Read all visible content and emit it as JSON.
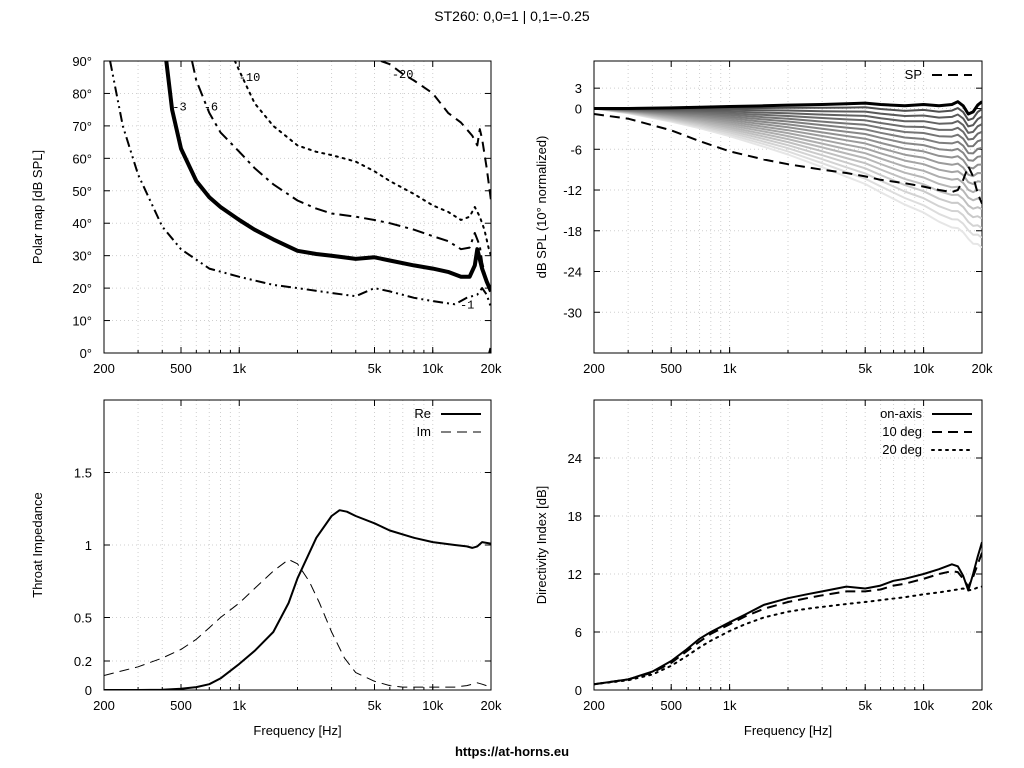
{
  "page_title": "ST260: 0,0=1 | 0,1=-0.25",
  "footer": "https://at-horns.eu",
  "chart_data": [
    {
      "type": "line",
      "id": "polar",
      "title": "",
      "xlabel": "",
      "ylabel": "Polar map [dB SPL]",
      "xscale": "log",
      "xlim": [
        200,
        20000
      ],
      "ylim": [
        0,
        90
      ],
      "xticks": [
        200,
        500,
        1000,
        5000,
        10000,
        20000
      ],
      "xticklabels": [
        "200",
        "500",
        "1k",
        "5k",
        "10k",
        "20k"
      ],
      "yticks": [
        0,
        10,
        20,
        30,
        40,
        50,
        60,
        70,
        80,
        90
      ],
      "yticklabels": [
        "0°",
        "10°",
        "20°",
        "30°",
        "40°",
        "50°",
        "60°",
        "70°",
        "80°",
        "90°"
      ],
      "grid": true,
      "series": [
        {
          "name": "-1",
          "style": "dash-dot-dot",
          "width": 2,
          "x": [
            215,
            250,
            300,
            400,
            500,
            700,
            1000,
            1500,
            2000,
            3000,
            4000,
            5000,
            6000,
            8000,
            10000,
            13000,
            15000,
            17000,
            18000,
            19000,
            20000
          ],
          "y": [
            90,
            70,
            55,
            39,
            32,
            26,
            23.5,
            21,
            20,
            18.5,
            17.5,
            20,
            19,
            17,
            16,
            15,
            17,
            18,
            20,
            18,
            14
          ],
          "label": {
            "text": "-1",
            "x": 13500,
            "y": 15
          }
        },
        {
          "name": "-3",
          "style": "solid",
          "width": 4,
          "x": [
            420,
            450,
            500,
            600,
            700,
            800,
            1000,
            1200,
            1500,
            2000,
            2500,
            3000,
            4000,
            5000,
            6000,
            8000,
            10000,
            12000,
            14000,
            15500,
            16500,
            17000,
            18000,
            19000,
            20000
          ],
          "y": [
            90,
            75,
            63,
            53,
            48,
            45,
            41,
            38,
            35,
            31.5,
            30.5,
            30,
            29,
            29.5,
            28.5,
            27,
            26,
            25,
            23.5,
            23.5,
            27,
            32,
            26,
            22,
            19
          ],
          "label": {
            "text": "-3",
            "x": 440,
            "y": 76
          }
        },
        {
          "name": "-6",
          "style": "dash-dot",
          "width": 2,
          "x": [
            570,
            600,
            700,
            800,
            1000,
            1200,
            1500,
            2000,
            2500,
            3000,
            4000,
            5000,
            6000,
            8000,
            10000,
            12000,
            14000,
            15500,
            16500,
            17500,
            18000,
            19000,
            20000
          ],
          "y": [
            90,
            84,
            74,
            68,
            62,
            57,
            52,
            47,
            44.5,
            43,
            42,
            41,
            40,
            38,
            36,
            34.5,
            32,
            32.5,
            37,
            33,
            28,
            22,
            19
          ],
          "label": {
            "text": "-6",
            "x": 640,
            "y": 76
          }
        },
        {
          "name": "-10",
          "style": "dotted",
          "width": 2,
          "x": [
            950,
            1000,
            1200,
            1500,
            2000,
            2500,
            3000,
            4000,
            5000,
            6000,
            8000,
            10000,
            12000,
            14000,
            15500,
            16500,
            17500,
            18500,
            19500,
            20000
          ],
          "y": [
            90,
            87,
            77,
            70,
            64,
            62,
            61,
            59,
            56,
            53,
            49,
            45.5,
            43.5,
            41,
            42,
            45,
            42,
            38,
            32,
            30
          ],
          "label": {
            "text": "-10",
            "x": 970,
            "y": 85
          }
        },
        {
          "name": "-20",
          "style": "dashed",
          "width": 2,
          "x": [
            5400,
            6000,
            7000,
            8000,
            10000,
            12000,
            14000,
            16000,
            17000,
            17500,
            18000,
            19000,
            20000
          ],
          "y": [
            90,
            89,
            86,
            84,
            80,
            74,
            71,
            67,
            64,
            69,
            66,
            57,
            47
          ],
          "label": {
            "text": "-20",
            "x": 6000,
            "y": 86
          }
        },
        {
          "name": "0",
          "style": "solid",
          "width": 3,
          "x": [
            19700,
            20000
          ],
          "y": [
            0,
            1.5
          ],
          "label": null
        }
      ]
    },
    {
      "type": "line",
      "id": "spl",
      "title": "",
      "xlabel": "",
      "ylabel": "dB SPL (10° normalized)",
      "xscale": "log",
      "xlim": [
        200,
        20000
      ],
      "ylim": [
        -36,
        7
      ],
      "xticks": [
        200,
        500,
        1000,
        5000,
        10000,
        20000
      ],
      "xticklabels": [
        "200",
        "500",
        "1k",
        "5k",
        "10k",
        "20k"
      ],
      "yticks": [
        3,
        0,
        -6,
        -12,
        -18,
        -24,
        -30
      ],
      "yticklabels": [
        "3",
        "0",
        "-6",
        "-12",
        "-18",
        "-24",
        "-30"
      ],
      "grid": true,
      "legend": [
        {
          "name": "SP",
          "style": "dashed"
        }
      ],
      "legend_position": "top-right",
      "x": [
        200,
        300,
        500,
        700,
        1000,
        1500,
        2000,
        3000,
        4000,
        5000,
        6000,
        8000,
        10000,
        12000,
        14000,
        15000,
        16000,
        17000,
        18000,
        19000,
        20000
      ],
      "fan_base": [
        0,
        0.1,
        0.2,
        0.3,
        0.5,
        0.8,
        1.0,
        1.5,
        1.9,
        2.1,
        2.3,
        2.6,
        3.0,
        3.3,
        3.7,
        3.9,
        3.0,
        1.5,
        3.2,
        5.0,
        6.8
      ],
      "series": [
        {
          "name": "on-axis",
          "style": "solid",
          "width": 3,
          "y": [
            0,
            0,
            0.1,
            0.2,
            0.3,
            0.4,
            0.5,
            0.6,
            0.7,
            0.8,
            0.6,
            0.4,
            0.6,
            0.4,
            0.6,
            1.0,
            0.4,
            -0.8,
            -0.5,
            0.5,
            1.0
          ]
        },
        {
          "name": "SP",
          "style": "dashed",
          "width": 2,
          "y": [
            -0.8,
            -1.5,
            -3.2,
            -4.8,
            -6.3,
            -7.5,
            -8.2,
            -9.0,
            -9.5,
            -10.0,
            -10.5,
            -11.0,
            -11.5,
            -12.0,
            -12.3,
            -12.0,
            -10.5,
            -8.5,
            -10.0,
            -12.5,
            -14.0
          ]
        }
      ]
    },
    {
      "type": "line",
      "id": "impedance",
      "title": "",
      "xlabel": "Frequency [Hz]",
      "ylabel": "Throat Impedance",
      "xscale": "log",
      "xlim": [
        200,
        20000
      ],
      "ylim": [
        0,
        2
      ],
      "xticks": [
        200,
        500,
        1000,
        5000,
        10000,
        20000
      ],
      "xticklabels": [
        "200",
        "500",
        "1k",
        "5k",
        "10k",
        "20k"
      ],
      "yticks": [
        0,
        0.2,
        0.5,
        1,
        1.5
      ],
      "yticklabels": [
        "0",
        "0.2",
        "0.5",
        "1",
        "1.5"
      ],
      "grid": true,
      "legend_position": "top-right",
      "series": [
        {
          "name": "Re",
          "style": "solid",
          "width": 2,
          "x": [
            200,
            300,
            400,
            500,
            600,
            700,
            800,
            1000,
            1200,
            1500,
            1800,
            2000,
            2500,
            3000,
            3300,
            3600,
            4000,
            5000,
            6000,
            8000,
            10000,
            13000,
            15000,
            16000,
            17000,
            18000,
            20000
          ],
          "y": [
            0,
            0,
            0.002,
            0.008,
            0.02,
            0.04,
            0.08,
            0.18,
            0.27,
            0.4,
            0.6,
            0.77,
            1.05,
            1.2,
            1.24,
            1.23,
            1.2,
            1.15,
            1.1,
            1.05,
            1.02,
            1.0,
            0.99,
            0.98,
            0.99,
            1.02,
            1.01
          ]
        },
        {
          "name": "Im",
          "style": "dashed",
          "width": 1,
          "x": [
            200,
            300,
            400,
            500,
            600,
            700,
            800,
            1000,
            1200,
            1500,
            1800,
            2000,
            2300,
            2600,
            3000,
            3500,
            4000,
            5000,
            6000,
            7000,
            8000,
            10000,
            13000,
            15000,
            17000,
            18000,
            20000
          ],
          "y": [
            0.1,
            0.16,
            0.22,
            0.28,
            0.35,
            0.43,
            0.5,
            0.6,
            0.7,
            0.82,
            0.9,
            0.87,
            0.75,
            0.6,
            0.4,
            0.22,
            0.12,
            0.06,
            0.03,
            0.02,
            0.02,
            0.02,
            0.02,
            0.03,
            0.05,
            0.04,
            0.02
          ]
        }
      ]
    },
    {
      "type": "line",
      "id": "di",
      "title": "",
      "xlabel": "Frequency [Hz]",
      "ylabel": "Directivity Index [dB]",
      "xscale": "log",
      "xlim": [
        200,
        20000
      ],
      "ylim": [
        0,
        30
      ],
      "xticks": [
        200,
        500,
        1000,
        5000,
        10000,
        20000
      ],
      "xticklabels": [
        "200",
        "500",
        "1k",
        "5k",
        "10k",
        "20k"
      ],
      "yticks": [
        0,
        6,
        12,
        18,
        24
      ],
      "yticklabels": [
        "0",
        "6",
        "12",
        "18",
        "24"
      ],
      "grid": true,
      "legend_position": "top-right",
      "series": [
        {
          "name": "on-axis",
          "style": "solid",
          "width": 2,
          "x": [
            200,
            300,
            400,
            500,
            600,
            700,
            800,
            1000,
            1200,
            1500,
            2000,
            2500,
            3000,
            4000,
            5000,
            6000,
            7000,
            8000,
            10000,
            12000,
            14000,
            15000,
            16000,
            17000,
            18000,
            19000,
            20000
          ],
          "y": [
            0.6,
            1.1,
            1.9,
            3.0,
            4.2,
            5.3,
            6.0,
            7.0,
            7.8,
            8.8,
            9.5,
            9.9,
            10.2,
            10.7,
            10.5,
            10.8,
            11.3,
            11.5,
            12.0,
            12.5,
            13.0,
            12.8,
            11.8,
            10.3,
            12.0,
            13.8,
            15.3
          ]
        },
        {
          "name": "10 deg",
          "style": "dashed",
          "width": 2,
          "x": [
            200,
            300,
            400,
            500,
            600,
            700,
            800,
            1000,
            1200,
            1500,
            2000,
            2500,
            3000,
            4000,
            5000,
            6000,
            7000,
            8000,
            10000,
            12000,
            14000,
            15000,
            16000,
            17000,
            18000,
            19000,
            20000
          ],
          "y": [
            0.6,
            1.1,
            1.8,
            2.8,
            4.0,
            5.0,
            5.8,
            6.8,
            7.6,
            8.4,
            9.1,
            9.5,
            9.8,
            10.2,
            10.2,
            10.4,
            10.8,
            11.0,
            11.5,
            12.0,
            12.3,
            12.2,
            11.5,
            10.7,
            11.7,
            13.0,
            14.2
          ]
        },
        {
          "name": "20 deg",
          "style": "dotted",
          "width": 2,
          "x": [
            200,
            300,
            400,
            500,
            600,
            700,
            800,
            1000,
            1200,
            1500,
            2000,
            2500,
            3000,
            4000,
            5000,
            6000,
            8000,
            10000,
            12000,
            14000,
            16000,
            17000,
            18000,
            19000,
            20000
          ],
          "y": [
            0.6,
            1.0,
            1.6,
            2.5,
            3.5,
            4.4,
            5.1,
            6.1,
            6.8,
            7.5,
            8.1,
            8.4,
            8.6,
            8.9,
            9.1,
            9.3,
            9.6,
            9.9,
            10.1,
            10.3,
            10.5,
            10.3,
            10.4,
            10.6,
            10.7
          ]
        }
      ]
    }
  ]
}
